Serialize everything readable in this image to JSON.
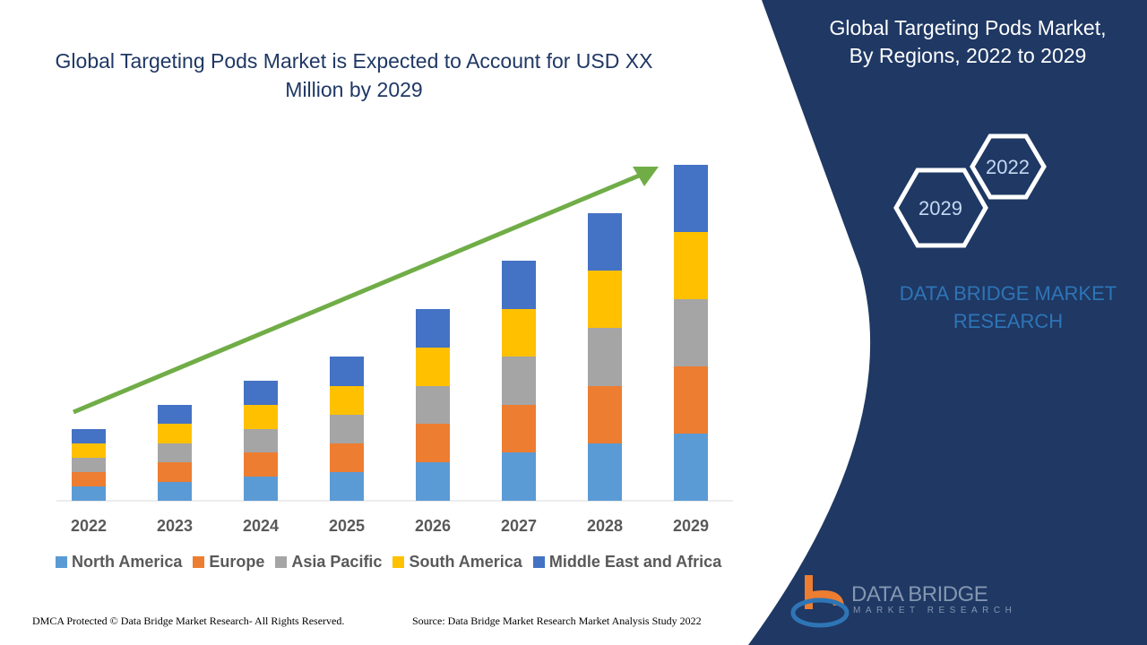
{
  "title": "Global Targeting Pods Market is Expected to Account for USD XX Million by 2029",
  "panel": {
    "title_line1": "Global Targeting Pods Market,",
    "title_line2": "By Regions, 2022 to 2029",
    "hex_front": "2029",
    "hex_back": "2022",
    "brand_line1": "DATA BRIDGE MARKET",
    "brand_line2": "RESEARCH"
  },
  "logo": {
    "name": "DATA BRIDGE",
    "sub": "MARKET RESEARCH"
  },
  "footer": {
    "left": "DMCA Protected © Data Bridge Market Research- All Rights Reserved.",
    "right": "Source: Data Bridge Market Research Market Analysis Study 2022"
  },
  "colors": {
    "panel": "#1f3864",
    "arrow": "#70ad47"
  },
  "chart_data": {
    "type": "bar",
    "stacked": true,
    "title": "Global Targeting Pods Market is Expected to Account for USD XX Million by 2029",
    "categories": [
      "2022",
      "2023",
      "2024",
      "2025",
      "2026",
      "2027",
      "2028",
      "2029"
    ],
    "series": [
      {
        "name": "North America",
        "color": "#5b9bd5",
        "values": [
          1.6,
          2.1,
          2.7,
          3.2,
          4.3,
          5.4,
          6.4,
          7.5
        ]
      },
      {
        "name": "Europe",
        "color": "#ed7d31",
        "values": [
          1.6,
          2.2,
          2.7,
          3.2,
          4.3,
          5.3,
          6.4,
          7.5
        ]
      },
      {
        "name": "Asia Pacific",
        "color": "#a5a5a5",
        "values": [
          1.6,
          2.1,
          2.6,
          3.2,
          4.2,
          5.4,
          6.5,
          7.5
        ]
      },
      {
        "name": "South America",
        "color": "#ffc000",
        "values": [
          1.6,
          2.2,
          2.7,
          3.2,
          4.3,
          5.3,
          6.4,
          7.5
        ]
      },
      {
        "name": "Middle East and Africa",
        "color": "#4472c4",
        "values": [
          1.6,
          2.1,
          2.7,
          3.3,
          4.3,
          5.4,
          6.4,
          7.5
        ]
      }
    ],
    "trend_arrow": true,
    "grid": false,
    "legend": "bottom"
  }
}
